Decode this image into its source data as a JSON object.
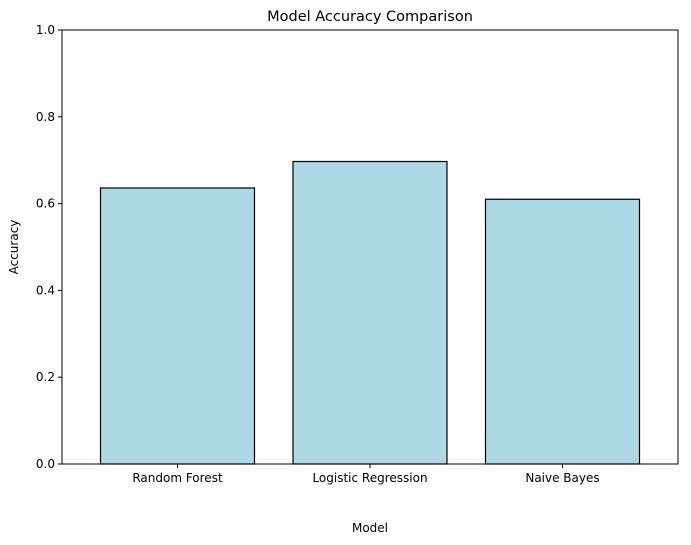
{
  "chart_data": {
    "type": "bar",
    "title": "Model Accuracy Comparison",
    "xlabel": "Model",
    "ylabel": "Accuracy",
    "categories": [
      "Random Forest",
      "Logistic Regression",
      "Naive Bayes"
    ],
    "values": [
      0.636,
      0.697,
      0.61
    ],
    "ylim": [
      0,
      1
    ],
    "yticks": [
      "0.0",
      "0.2",
      "0.4",
      "0.6",
      "0.8",
      "1.0"
    ],
    "grid": false,
    "legend": "none",
    "bar_color": "#add8e6",
    "bar_edge_color": "#000000"
  }
}
